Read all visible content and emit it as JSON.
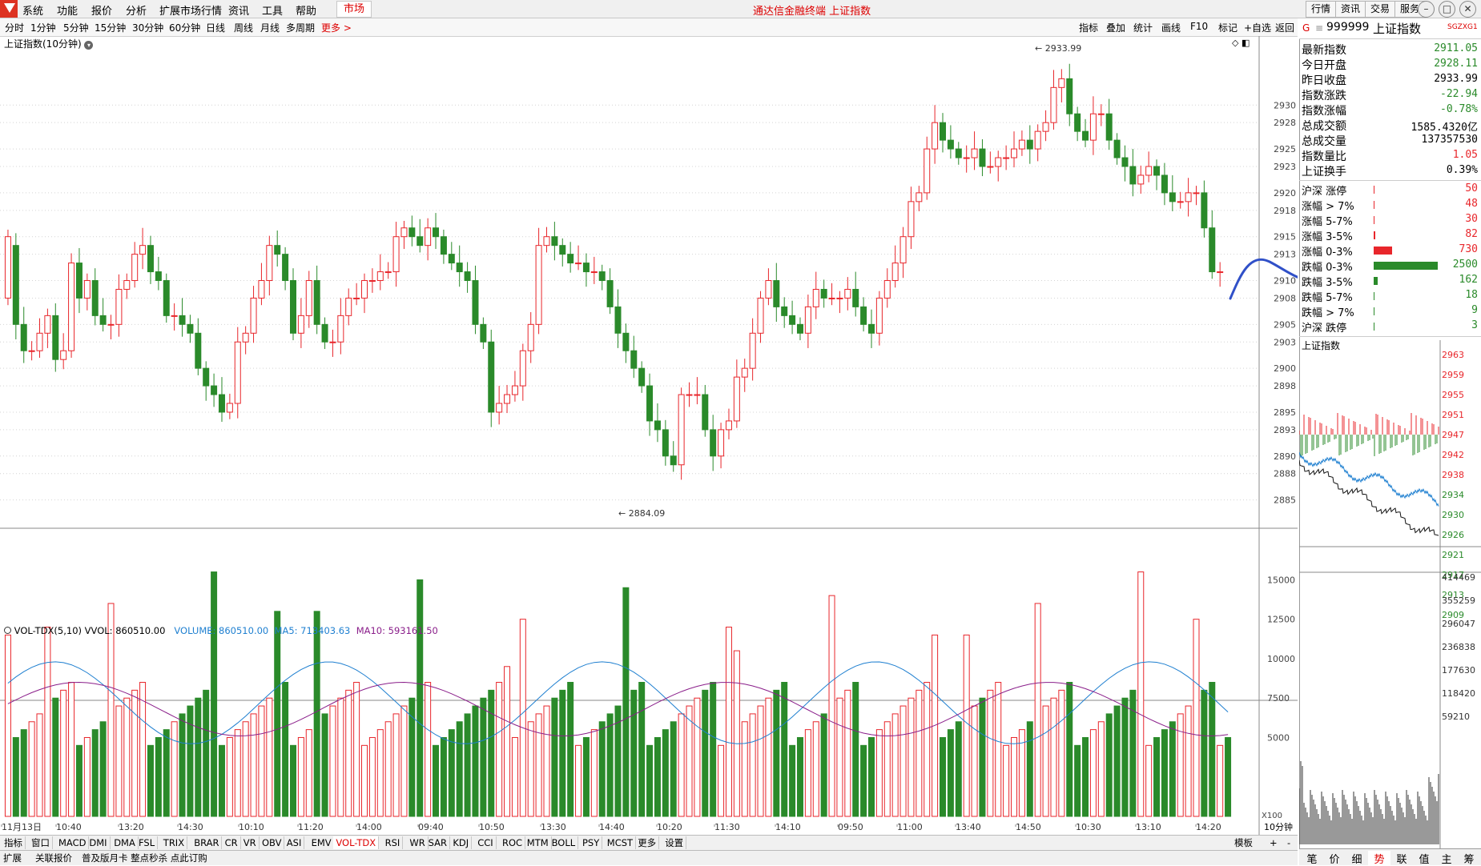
{
  "menubar": {
    "items": [
      "系统",
      "功能",
      "报价",
      "分析",
      "扩展市场行情",
      "资讯",
      "工具",
      "帮助"
    ],
    "market": "市场",
    "title": "通达信金融终端 上证指数",
    "right_buttons": [
      "行情",
      "资讯",
      "交易",
      "服务"
    ]
  },
  "periods": [
    "分时",
    "1分钟",
    "5分钟",
    "15分钟",
    "30分钟",
    "60分钟",
    "日线",
    "周线",
    "月线",
    "多周期",
    "更多 >"
  ],
  "tools": [
    "指标",
    "叠加",
    "统计",
    "画线",
    "F10",
    "标记",
    "+自选",
    "返回"
  ],
  "chart": {
    "title": "上证指数(10分钟)",
    "high_label": "2933.99",
    "low_label": "2884.09",
    "y_ticks": [
      2930,
      2928,
      2925,
      2923,
      2920,
      2918,
      2915,
      2913,
      2910,
      2908,
      2905,
      2903,
      2900,
      2898,
      2895,
      2893,
      2890,
      2888,
      2885
    ],
    "x_labels": [
      "11月13日",
      "10:40",
      "13:20",
      "14:30",
      "10:10",
      "11:20",
      "14:00",
      "09:40",
      "10:50",
      "13:30",
      "14:40",
      "10:20",
      "11:30",
      "14:10",
      "09:50",
      "11:00",
      "13:40",
      "14:50",
      "10:30",
      "13:10",
      "14:20"
    ],
    "vol_ticks": [
      15000,
      12500,
      10000,
      7500,
      5000
    ],
    "vol_unit": "X100",
    "period_label": "10分钟"
  },
  "volume_legend": {
    "name": "VOL-TDX(5,10)",
    "vvol": "VVOL: 860510.00",
    "volume": "VOLUME: 860510.00",
    "ma5": "MA5: 713403.63",
    "ma10": "MA10: 593161.50"
  },
  "colors": {
    "up": "#e8262b",
    "down": "#2a8a2a",
    "ma5": "#1e7fd0",
    "ma10": "#8a1e8a",
    "accent": "#cc0000",
    "annot": "#3050c8"
  },
  "indicator_tabs": [
    "指标",
    "窗口",
    "MACD",
    "DMI",
    "DMA",
    "FSL",
    "TRIX",
    "BRAR",
    "CR",
    "VR",
    "OBV",
    "ASI",
    "EMV",
    "VOL-TDX",
    "RSI",
    "WR",
    "SAR",
    "KDJ",
    "CCI",
    "ROC",
    "MTM",
    "BOLL",
    "PSY",
    "MCST",
    "更多",
    "设置"
  ],
  "indicator_active": "VOL-TDX",
  "indicator_right": [
    "模板",
    "+",
    "-"
  ],
  "bottom_tabs": [
    "扩展",
    "关联报价",
    "普及版月卡 整点秒杀 点此订购"
  ],
  "right_panel": {
    "code": "999999",
    "name": "上证指数",
    "tag": "SGZXG1",
    "quotes": [
      {
        "label": "最新指数",
        "value": "2911.05",
        "color": "#2a8a2a"
      },
      {
        "label": "今日开盘",
        "value": "2928.11",
        "color": "#2a8a2a"
      },
      {
        "label": "昨日收盘",
        "value": "2933.99",
        "color": "#000000"
      },
      {
        "label": "指数涨跌",
        "value": "-22.94",
        "color": "#2a8a2a"
      },
      {
        "label": "指数涨幅",
        "value": "-0.78%",
        "color": "#2a8a2a"
      },
      {
        "label": "总成交额",
        "value": "1585.4320亿",
        "color": "#000000"
      },
      {
        "label": "总成交量",
        "value": "137357530",
        "color": "#000000"
      },
      {
        "label": "指数量比",
        "value": "1.05",
        "color": "#e8262b"
      },
      {
        "label": "上证换手",
        "value": "0.39%",
        "color": "#000000"
      }
    ],
    "dist": [
      {
        "label": "沪深 涨停",
        "value": "50",
        "color": "#e8262b",
        "frac": 0.0
      },
      {
        "label": "涨幅 > 7%",
        "value": "48",
        "color": "#e8262b",
        "frac": 0.0
      },
      {
        "label": "涨幅 5-7%",
        "value": "30",
        "color": "#e8262b",
        "frac": 0.0
      },
      {
        "label": "涨幅 3-5%",
        "value": "82",
        "color": "#e8262b",
        "frac": 0.03
      },
      {
        "label": "涨幅 0-3%",
        "value": "730",
        "color": "#e8262b",
        "frac": 0.29
      },
      {
        "label": "跌幅 0-3%",
        "value": "2500",
        "color": "#2a8a2a",
        "frac": 1.0
      },
      {
        "label": "跌幅 3-5%",
        "value": "162",
        "color": "#2a8a2a",
        "frac": 0.06
      },
      {
        "label": "跌幅 5-7%",
        "value": "18",
        "color": "#2a8a2a",
        "frac": 0.0
      },
      {
        "label": "跌幅 > 7%",
        "value": "9",
        "color": "#2a8a2a",
        "frac": 0.0
      },
      {
        "label": "沪深 跌停",
        "value": "3",
        "color": "#2a8a2a",
        "frac": 0.0
      }
    ],
    "mini_title": "上证指数",
    "mini_price_ticks": [
      "2963",
      "2959",
      "2955",
      "2951",
      "2947",
      "2942",
      "2938",
      "2934",
      "2930",
      "2926",
      "2921",
      "2917",
      "2913",
      "2909"
    ],
    "mini_vol_ticks": [
      "414469",
      "355259",
      "296047",
      "236838",
      "177630",
      "118420",
      "59210"
    ],
    "tabs": [
      "笔",
      "价",
      "细",
      "势",
      "联",
      "值",
      "主",
      "筹"
    ],
    "active_tab": "势"
  }
}
